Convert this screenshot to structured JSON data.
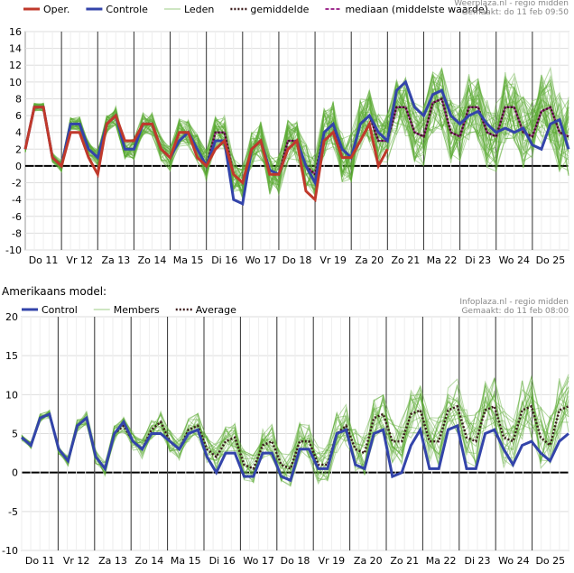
{
  "section_heading": "Amerikaans model:",
  "colors": {
    "oper": "#c0392b",
    "control": "#3344aa",
    "members": "#5aaa33",
    "average": "#3a1a1a",
    "median": "#a03090"
  },
  "chart_data": [
    {
      "type": "line",
      "credit": "Weerplaza.nl - regio midden",
      "made_at": "Gemaakt: do 11 feb 09:50",
      "ylim": [
        -10,
        16
      ],
      "yticks": [
        16,
        14,
        12,
        10,
        8,
        6,
        4,
        2,
        0,
        -2,
        -4,
        -6,
        -8,
        -10
      ],
      "grid": true,
      "legend_position": "top",
      "day_labels": [
        "Do 11",
        "Vr 12",
        "Za 13",
        "Zo 14",
        "Ma 15",
        "Di 16",
        "Wo 17",
        "Do 18",
        "Vr 19",
        "Za 20",
        "Zo 21",
        "Ma 22",
        "Di 23",
        "Wo 24",
        "Do 25"
      ],
      "legend": {
        "oper": "Oper.",
        "control": "Controle",
        "members": "Leden",
        "average": "gemiddelde",
        "median": "mediaan (middelste waarde)"
      },
      "series": [
        {
          "name": "Oper.",
          "role": "oper",
          "values": [
            2,
            7,
            7,
            1,
            0,
            4,
            4,
            1,
            -1,
            5,
            6,
            3,
            3,
            5,
            5,
            2,
            1,
            4,
            4,
            1,
            0,
            2,
            3,
            -1,
            -2,
            2,
            3,
            -1,
            -1,
            2,
            3,
            -3,
            -4,
            3,
            4,
            1,
            1,
            3,
            5,
            0,
            2
          ]
        },
        {
          "name": "Controle",
          "role": "control",
          "values": [
            2,
            7,
            7,
            1,
            0,
            5,
            5,
            2,
            1,
            5,
            6,
            2,
            2,
            5,
            5,
            2,
            1,
            3,
            4,
            2,
            0,
            3,
            3,
            -4,
            -4.5,
            2,
            3,
            -0.5,
            -1,
            2,
            3,
            0,
            -2,
            4,
            5,
            2,
            1,
            5,
            6,
            4,
            3,
            9,
            10,
            7,
            6,
            8.5,
            9,
            6,
            5,
            6,
            6.5,
            5,
            4,
            4.5,
            4,
            4.5,
            2.5,
            2,
            5,
            5.5,
            2
          ]
        },
        {
          "name": "gemiddelde",
          "role": "average",
          "values": [
            2,
            7,
            7,
            1,
            0,
            5,
            5,
            2,
            1,
            5,
            6,
            2,
            2,
            5,
            5,
            2,
            1,
            4,
            4,
            2,
            0,
            4,
            4,
            -1,
            -2,
            2,
            3,
            -1,
            -1,
            3,
            3,
            0,
            -1,
            4,
            5,
            1,
            1,
            5,
            6,
            3,
            3,
            7,
            7,
            4,
            3.5,
            7.5,
            8,
            4,
            3.5,
            7,
            7,
            4,
            3.5,
            7,
            7,
            4,
            3.5,
            6.5,
            7,
            4,
            3.5
          ]
        },
        {
          "name": "mediaan (middelste waarde)",
          "role": "median",
          "values": [
            2,
            7,
            7,
            1,
            0,
            5,
            5,
            2,
            1,
            5,
            6,
            2,
            2,
            5,
            5,
            2,
            1,
            4,
            4,
            2,
            0,
            4,
            4,
            -1,
            -2,
            2,
            3,
            -1,
            -1,
            3,
            3,
            0,
            -1,
            4,
            5,
            1,
            1,
            5,
            6,
            3,
            3,
            7,
            7,
            4,
            3.5,
            7.5,
            8,
            4,
            3.5,
            7,
            7,
            4,
            3.5,
            7,
            7,
            4,
            3.5,
            6.5,
            7,
            4,
            3.5
          ]
        }
      ]
    },
    {
      "type": "line",
      "credit": "Infoplaza.nl - regio midden",
      "made_at": "Gemaakt: do 11 feb 08:00",
      "ylim": [
        -10,
        20
      ],
      "yticks": [
        20,
        15,
        10,
        5,
        0,
        -5,
        -10
      ],
      "grid": true,
      "legend_position": "top",
      "day_labels": [
        "Do 11",
        "Vr 12",
        "Za 13",
        "Zo 14",
        "Ma 15",
        "Di 16",
        "Wo 17",
        "Do 18",
        "Vr 19",
        "Za 20",
        "Zo 21",
        "Ma 22",
        "Di 23",
        "Wo 24",
        "Do 25"
      ],
      "legend": {
        "control": "Control",
        "members": "Members",
        "average": "Average"
      },
      "series": [
        {
          "name": "Control",
          "role": "control",
          "values": [
            4.5,
            3.5,
            7,
            7.5,
            3,
            1.5,
            6,
            7,
            2,
            0.5,
            5,
            6.5,
            4,
            3,
            5,
            5,
            4,
            3,
            5,
            5.5,
            2,
            0,
            2.5,
            2.5,
            -0.5,
            -0.5,
            2.5,
            2.5,
            -0.5,
            -1,
            3,
            3,
            0.5,
            0.5,
            5,
            5.5,
            1,
            0.5,
            5,
            5.5,
            -0.5,
            0,
            3.5,
            5.5,
            0.5,
            0.5,
            5.5,
            6,
            0.5,
            0.5,
            5,
            5.5,
            3,
            1,
            3.5,
            4,
            2.5,
            1.5,
            4,
            5
          ]
        },
        {
          "name": "Average",
          "role": "average",
          "values": [
            4.5,
            3.5,
            7,
            7.5,
            3,
            1.5,
            6,
            7,
            2,
            0.5,
            5,
            6,
            4,
            3,
            5.5,
            6.5,
            4,
            3,
            5.5,
            6,
            3,
            2,
            4,
            4.5,
            1,
            0.5,
            3.5,
            4,
            1,
            0.5,
            4,
            4,
            1,
            1,
            5,
            6,
            3,
            2.5,
            7,
            7.5,
            4,
            4,
            7.5,
            8,
            4,
            4,
            8,
            8.5,
            4.5,
            4,
            8,
            8.5,
            4.5,
            4,
            8,
            8.5,
            4.5,
            3.5,
            8,
            8.5
          ]
        }
      ]
    }
  ]
}
